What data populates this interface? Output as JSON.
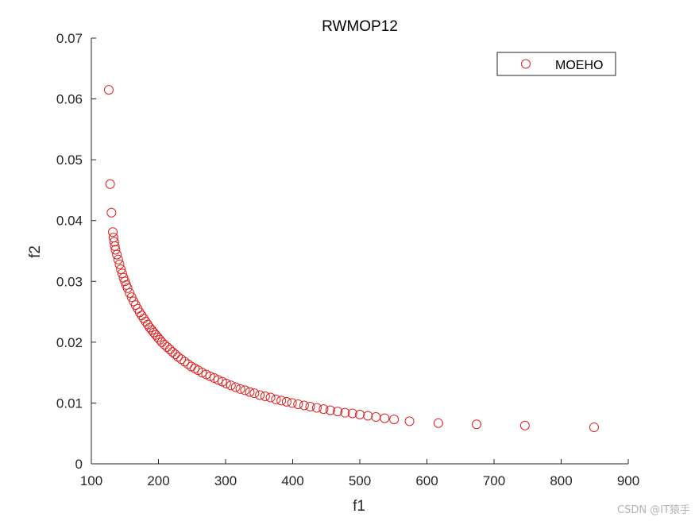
{
  "chart_data": {
    "type": "scatter",
    "title": "RWMOP12",
    "xlabel": "f1",
    "ylabel": "f2",
    "xlim": [
      100,
      900
    ],
    "ylim": [
      0,
      0.07
    ],
    "xticks": [
      "100",
      "200",
      "300",
      "400",
      "500",
      "600",
      "700",
      "800",
      "900"
    ],
    "yticks": [
      "0",
      "0.01",
      "0.02",
      "0.03",
      "0.04",
      "0.05",
      "0.06",
      "0.07"
    ],
    "grid": false,
    "legend": {
      "position": "top-right",
      "entries": [
        "MOEHO"
      ]
    },
    "marker": "open-circle",
    "color": "#dd2222",
    "series": [
      {
        "name": "MOEHO",
        "x": [
          126,
          128,
          130,
          132,
          133,
          134,
          135,
          136,
          138,
          140,
          142,
          144,
          146,
          148,
          150,
          152,
          154,
          157,
          160,
          163,
          166,
          169,
          172,
          175,
          178,
          181,
          184,
          187,
          190,
          193,
          196,
          199,
          202,
          205,
          209,
          213,
          217,
          221,
          225,
          229,
          234,
          239,
          244,
          249,
          254,
          259,
          265,
          271,
          277,
          283,
          289,
          295,
          301,
          308,
          315,
          322,
          329,
          336,
          343,
          351,
          359,
          367,
          375,
          383,
          391,
          399,
          408,
          417,
          426,
          436,
          446,
          456,
          467,
          478,
          489,
          500,
          512,
          524,
          537,
          551,
          574,
          617,
          674,
          746,
          849
        ],
        "y": [
          0.0615,
          0.046,
          0.0413,
          0.0381,
          0.0372,
          0.0365,
          0.0358,
          0.0352,
          0.0344,
          0.0336,
          0.0328,
          0.032,
          0.0313,
          0.0306,
          0.03,
          0.0294,
          0.0289,
          0.0281,
          0.0274,
          0.0267,
          0.0261,
          0.0255,
          0.0249,
          0.0244,
          0.0239,
          0.0234,
          0.0229,
          0.0224,
          0.022,
          0.0216,
          0.0212,
          0.0208,
          0.0204,
          0.02,
          0.0196,
          0.0192,
          0.0188,
          0.0184,
          0.018,
          0.0176,
          0.0172,
          0.0168,
          0.0164,
          0.016,
          0.0157,
          0.0154,
          0.015,
          0.0147,
          0.0144,
          0.0141,
          0.0138,
          0.0135,
          0.0132,
          0.0129,
          0.0126,
          0.0123,
          0.0121,
          0.0118,
          0.0116,
          0.0113,
          0.0111,
          0.0109,
          0.0106,
          0.0104,
          0.0102,
          0.01,
          0.0098,
          0.0096,
          0.0094,
          0.0092,
          0.009,
          0.0088,
          0.0086,
          0.0084,
          0.0083,
          0.0081,
          0.0079,
          0.0077,
          0.0075,
          0.0073,
          0.007,
          0.0067,
          0.0065,
          0.0063,
          0.006
        ]
      }
    ]
  },
  "watermark": "CSDN @IT猿手"
}
